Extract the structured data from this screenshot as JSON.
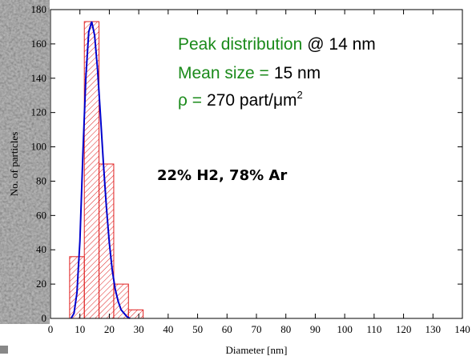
{
  "chart_data": {
    "type": "histogram",
    "xlabel": "Diameter [nm]",
    "ylabel": "No. of particles",
    "bins": [
      6.5,
      11.5,
      16.5,
      21.5,
      26.5,
      31.5
    ],
    "values": [
      36,
      173,
      90,
      20,
      5
    ],
    "color": "#e02020",
    "fit": {
      "color": "#0000cc",
      "x": [
        7,
        8,
        9,
        10,
        11,
        12,
        13,
        14,
        15,
        16,
        17,
        18,
        19,
        20,
        21,
        22,
        23,
        24,
        25,
        26,
        27
      ],
      "y": [
        0,
        3,
        15,
        45,
        95,
        140,
        167,
        173,
        165,
        145,
        118,
        90,
        65,
        44,
        28,
        17,
        10,
        5,
        3,
        1,
        0
      ]
    },
    "xlim": [
      0,
      140
    ],
    "xticks": [
      0,
      10,
      20,
      30,
      40,
      50,
      60,
      70,
      80,
      90,
      100,
      110,
      120,
      130,
      140
    ],
    "ylim": [
      0,
      180
    ],
    "yticks": [
      0,
      20,
      40,
      60,
      80,
      100,
      120,
      140,
      160,
      180
    ],
    "annotations": [
      {
        "parts": [
          {
            "text": "Peak distribution",
            "color": "#1a8a1a"
          },
          {
            "text": "@ 14 nm",
            "color": "#000000"
          }
        ]
      },
      {
        "parts": [
          {
            "text": "Mean size =",
            "color": "#1a8a1a"
          },
          {
            "text": "15 nm",
            "color": "#000000"
          }
        ]
      },
      {
        "parts": [
          {
            "text": "ρ =",
            "color": "#1a8a1a"
          },
          {
            "text": "270 part/",
            "color": "#000000"
          },
          {
            "text": "μm",
            "color": "#000000"
          },
          {
            "text": "2",
            "color": "#000000",
            "sup": true
          }
        ]
      }
    ],
    "condition": "22% H2, 78% Ar"
  }
}
